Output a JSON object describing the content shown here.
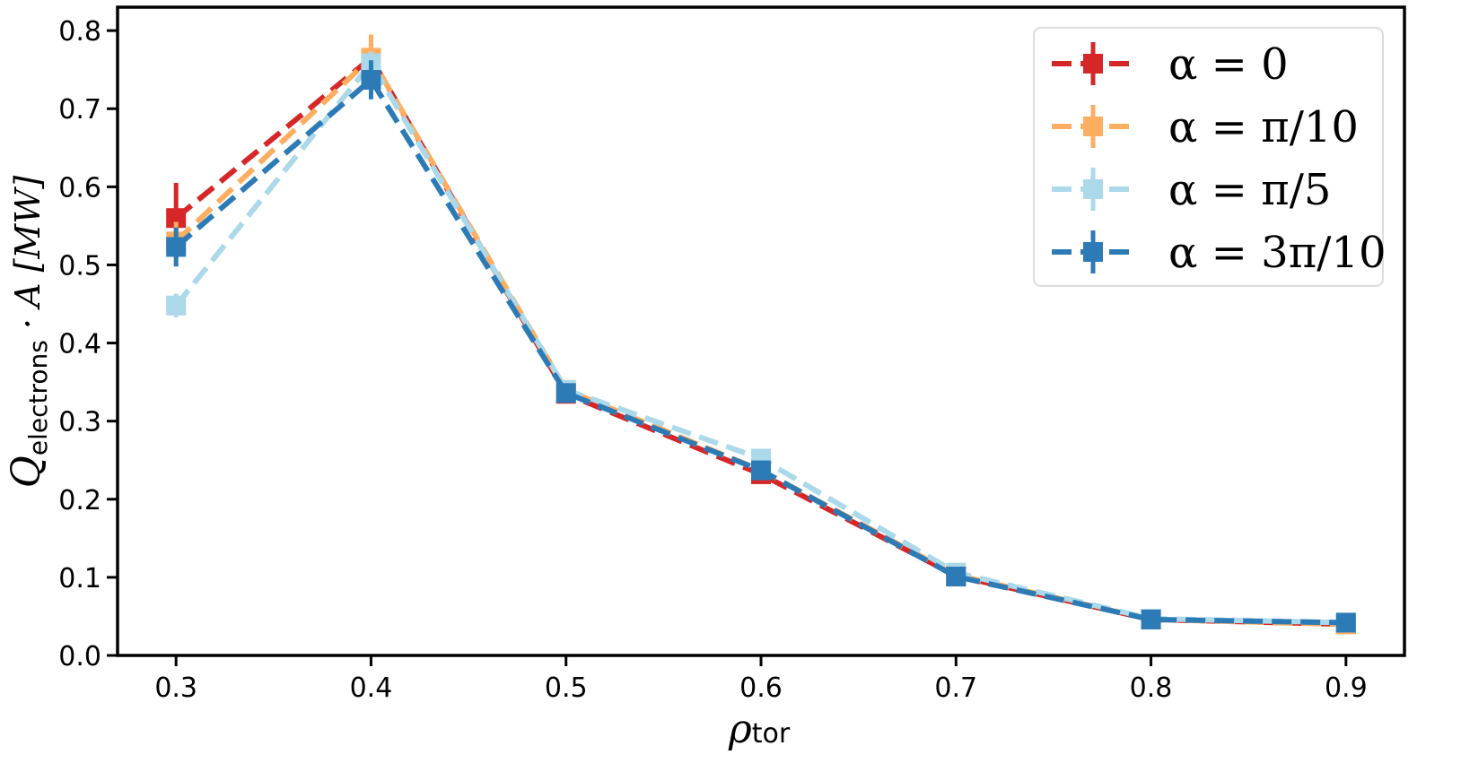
{
  "chart_data": {
    "type": "line",
    "xlabel": {
      "main": "ρ",
      "sub": "tor"
    },
    "ylabel": {
      "main": "Q",
      "sub": "electrons",
      "rest": " · A [MW]"
    },
    "xlim": [
      0.27,
      0.93
    ],
    "ylim": [
      0.0,
      0.83
    ],
    "xticks": [
      0.3,
      0.4,
      0.5,
      0.6,
      0.7,
      0.8,
      0.9
    ],
    "yticks": [
      0.0,
      0.1,
      0.2,
      0.3,
      0.4,
      0.5,
      0.6,
      0.7,
      0.8
    ],
    "xtick_labels": [
      "0.3",
      "0.4",
      "0.5",
      "0.6",
      "0.7",
      "0.8",
      "0.9"
    ],
    "ytick_labels": [
      "0.0",
      "0.1",
      "0.2",
      "0.3",
      "0.4",
      "0.5",
      "0.6",
      "0.7",
      "0.8"
    ],
    "grid": false,
    "legend_position": "top-right",
    "x": [
      0.3,
      0.4,
      0.5,
      0.6,
      0.7,
      0.8,
      0.9
    ],
    "series": [
      {
        "name": "α = 0",
        "color": "#d62728",
        "values": [
          0.56,
          0.765,
          0.335,
          0.232,
          0.102,
          0.046,
          0.04
        ],
        "errors": [
          0.045,
          0.02,
          0.01,
          0.008,
          0.005,
          0.003,
          0.003
        ]
      },
      {
        "name": "α = π/10",
        "color": "#fdae61",
        "values": [
          0.53,
          0.765,
          0.34,
          0.237,
          0.103,
          0.046,
          0.04
        ],
        "errors": [
          0.025,
          0.03,
          0.01,
          0.008,
          0.005,
          0.003,
          0.003
        ]
      },
      {
        "name": "α = π/5",
        "color": "#abd9e9",
        "values": [
          0.448,
          0.758,
          0.34,
          0.252,
          0.106,
          0.047,
          0.042
        ],
        "errors": [
          0.015,
          0.015,
          0.01,
          0.008,
          0.005,
          0.003,
          0.003
        ]
      },
      {
        "name": "α = 3π/10",
        "color": "#2c7bb6",
        "values": [
          0.523,
          0.737,
          0.336,
          0.237,
          0.101,
          0.046,
          0.042
        ],
        "errors": [
          0.025,
          0.025,
          0.01,
          0.008,
          0.005,
          0.003,
          0.003
        ]
      }
    ]
  }
}
